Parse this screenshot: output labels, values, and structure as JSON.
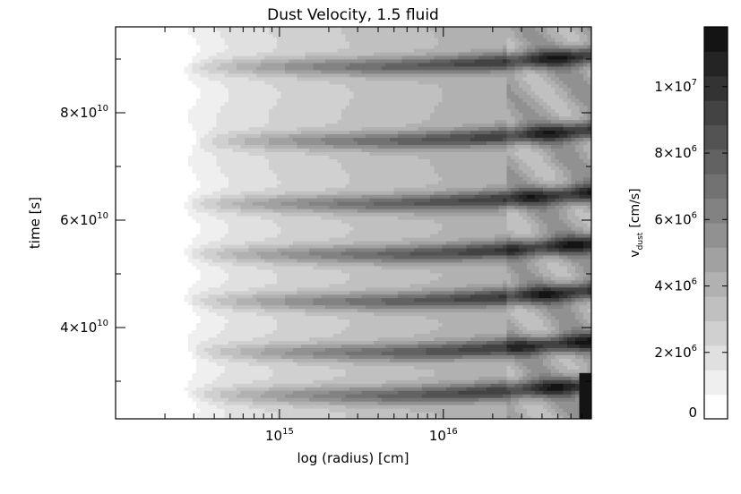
{
  "chart_data": {
    "type": "heatmap",
    "title": "Dust Velocity, 1.5 fluid",
    "xlabel": "log (radius) [cm]",
    "ylabel": "time [s]",
    "x_scale": "log",
    "xlim": [
      100000000000000.0,
      8e+16
    ],
    "ylim": [
      23000000000.0,
      96000000000.0
    ],
    "x_ticks": [
      {
        "value": 1000000000000000.0,
        "base": "10",
        "exp": "15"
      },
      {
        "value": 1e+16,
        "base": "10",
        "exp": "16"
      }
    ],
    "y_ticks": [
      {
        "value": 40000000000.0,
        "base": "4×10",
        "exp": "10"
      },
      {
        "value": 60000000000.0,
        "base": "6×10",
        "exp": "10"
      },
      {
        "value": 80000000000.0,
        "base": "8×10",
        "exp": "10"
      }
    ],
    "colorbar": {
      "label_main": "v",
      "label_sub": "dust",
      "label_unit": "[cm/s]",
      "vmin": 0,
      "vmax": 11800000,
      "levels": 16,
      "ticks": [
        {
          "value": 0,
          "base": "0",
          "exp": ""
        },
        {
          "value": 2000000,
          "base": "2×10",
          "exp": "6"
        },
        {
          "value": 4000000,
          "base": "4×10",
          "exp": "6"
        },
        {
          "value": 6000000,
          "base": "6×10",
          "exp": "6"
        },
        {
          "value": 8000000,
          "base": "8×10",
          "exp": "6"
        },
        {
          "value": 10000000,
          "base": "1×10",
          "exp": "7"
        }
      ]
    },
    "colors": {
      "low": "#ffffff",
      "high": "#141414"
    }
  }
}
